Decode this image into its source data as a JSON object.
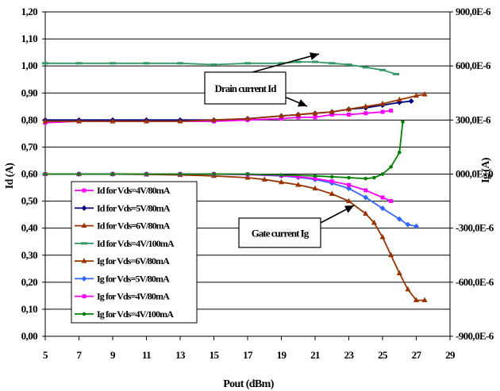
{
  "chart_data": {
    "type": "line",
    "xlabel": "Pout (dBm)",
    "ylabel_left": "Id (A)",
    "ylabel_right": "Ig (A)",
    "xlim": [
      5,
      29
    ],
    "ylim_left": [
      0,
      1.2
    ],
    "ylim_right": [
      -0.0009,
      0.0009
    ],
    "grid": "horizontal",
    "legend_position": "bottom-left",
    "x_ticks": [
      "5",
      "7",
      "9",
      "11",
      "13",
      "15",
      "17",
      "19",
      "21",
      "23",
      "25",
      "27",
      "29"
    ],
    "y_ticks_left": [
      "0,00",
      "0,10",
      "0,20",
      "0,30",
      "0,40",
      "0,50",
      "0,60",
      "0,70",
      "0,80",
      "0,90",
      "1,00",
      "1,10",
      "1,20"
    ],
    "y_ticks_right": [
      "-900,0E-6",
      "-600,0E-6",
      "-300,0E-6",
      "000,0E+0",
      "300,0E-6",
      "600,0E-6",
      "900,0E-6"
    ],
    "series": [
      {
        "name": "Id for Vds=4V/80mA",
        "axis": "left",
        "color": "#ff00ff",
        "marker": "square",
        "x": [
          5,
          7,
          9,
          11,
          13,
          15,
          17,
          19,
          20,
          21,
          22,
          23,
          24,
          25,
          25.5
        ],
        "y": [
          0.79,
          0.795,
          0.795,
          0.795,
          0.795,
          0.795,
          0.8,
          0.805,
          0.81,
          0.81,
          0.82,
          0.82,
          0.825,
          0.83,
          0.835
        ]
      },
      {
        "name": "Id for Vds=5V/80mA",
        "axis": "left",
        "color": "#000080",
        "marker": "diamond",
        "x": [
          5,
          7,
          9,
          11,
          13,
          15,
          17,
          19,
          20,
          21,
          22,
          23,
          24,
          25,
          26,
          26.7
        ],
        "y": [
          0.8,
          0.8,
          0.8,
          0.8,
          0.8,
          0.8,
          0.805,
          0.815,
          0.82,
          0.825,
          0.83,
          0.84,
          0.845,
          0.855,
          0.865,
          0.87
        ]
      },
      {
        "name": "Id for Vds=6V/80mA",
        "axis": "left",
        "color": "#993300",
        "marker": "triangle",
        "x": [
          5,
          7,
          9,
          11,
          13,
          15,
          17,
          19,
          20,
          21,
          22,
          23,
          24,
          25,
          26,
          27,
          27.5
        ],
        "y": [
          0.795,
          0.795,
          0.795,
          0.795,
          0.795,
          0.8,
          0.805,
          0.815,
          0.82,
          0.825,
          0.83,
          0.84,
          0.85,
          0.86,
          0.875,
          0.89,
          0.895
        ]
      },
      {
        "name": "Id for Vds=4V/100mA",
        "axis": "left",
        "color": "#339966",
        "marker": "dash",
        "x": [
          5,
          7,
          9,
          11,
          13,
          15,
          17,
          19,
          20,
          21,
          22,
          23,
          24,
          25,
          25.8
        ],
        "y": [
          1.01,
          1.01,
          1.01,
          1.01,
          1.01,
          1.005,
          1.01,
          1.01,
          1.015,
          1.015,
          1.01,
          1.005,
          0.995,
          0.985,
          0.97
        ]
      },
      {
        "name": "Ig for Vds=6V/80mA",
        "axis": "right",
        "color": "#993300",
        "marker": "triangle",
        "x": [
          5,
          7,
          9,
          11,
          13,
          15,
          17,
          18,
          19,
          20,
          21,
          22,
          23,
          24,
          24.5,
          25,
          25.5,
          26,
          26.5,
          27,
          27.5
        ],
        "y": [
          0,
          0,
          0,
          -2e-06,
          -5e-06,
          -1e-05,
          -2e-05,
          -3e-05,
          -4.5e-05,
          -6e-05,
          -8e-05,
          -0.00011,
          -0.00015,
          -0.00022,
          -0.00027,
          -0.00035,
          -0.00045,
          -0.00055,
          -0.00064,
          -0.0007,
          -0.0007
        ]
      },
      {
        "name": "Ig for Vds=5V/80mA",
        "axis": "right",
        "color": "#3366ff",
        "marker": "diamond",
        "x": [
          5,
          7,
          9,
          11,
          13,
          15,
          17,
          19,
          20,
          21,
          22,
          23,
          24,
          25,
          26,
          26.5,
          27
        ],
        "y": [
          0,
          0,
          0,
          0,
          0,
          0,
          -3e-06,
          -1e-05,
          -1.8e-05,
          -3e-05,
          -5e-05,
          -8e-05,
          -0.00013,
          -0.00019,
          -0.00025,
          -0.00028,
          -0.00029
        ]
      },
      {
        "name": "Ig for Vds=4V/80mA",
        "axis": "right",
        "color": "#ff00ff",
        "marker": "square",
        "x": [
          5,
          7,
          9,
          11,
          13,
          15,
          17,
          19,
          20,
          21,
          22,
          23,
          24,
          25,
          25.5
        ],
        "y": [
          0,
          0,
          0,
          0,
          0,
          0,
          -2e-06,
          -8e-06,
          -1.5e-05,
          -2.5e-05,
          -4e-05,
          -6e-05,
          -9e-05,
          -0.00013,
          -0.00015
        ]
      },
      {
        "name": "Ig for Vds=4V/100mA",
        "axis": "right",
        "color": "#008000",
        "marker": "dot",
        "x": [
          5,
          7,
          9,
          11,
          13,
          15,
          17,
          19,
          21,
          22,
          23,
          24,
          24.5,
          25,
          25.5,
          26,
          26.2
        ],
        "y": [
          0,
          0,
          0,
          0,
          0,
          0,
          0,
          -5e-06,
          -1e-05,
          -1.5e-05,
          -2e-05,
          -2.5e-05,
          -2e-05,
          0,
          4e-05,
          0.00012,
          0.00029
        ]
      }
    ],
    "legend": [
      {
        "label": "Id for Vds=4V/80mA",
        "color": "#ff00ff",
        "marker": "square"
      },
      {
        "label": "Id for Vds=5V/80mA",
        "color": "#000080",
        "marker": "diamond"
      },
      {
        "label": "Id for Vds=6V/80mA",
        "color": "#993300",
        "marker": "triangle"
      },
      {
        "label": "Id for Vds=4V/100mA",
        "color": "#339966",
        "marker": "dash"
      },
      {
        "label": "Ig for Vds=6V/80mA",
        "color": "#993300",
        "marker": "triangle"
      },
      {
        "label": "Ig for Vds=5V/80mA",
        "color": "#3366ff",
        "marker": "diamond"
      },
      {
        "label": "Ig for Vds=4V/80mA",
        "color": "#ff00ff",
        "marker": "square"
      },
      {
        "label": "Ig for Vds=4V/100mA",
        "color": "#008000",
        "marker": "dot"
      }
    ],
    "annotations": [
      {
        "text": "Drain current Id"
      },
      {
        "text": "Gate current Ig"
      }
    ]
  }
}
